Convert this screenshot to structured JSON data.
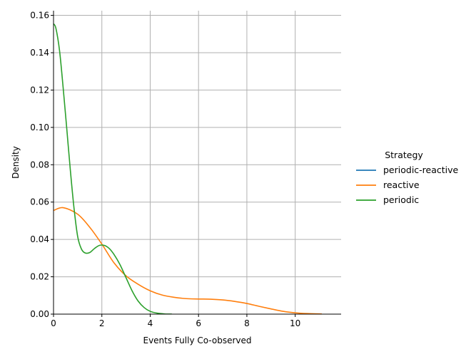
{
  "chart_data": {
    "type": "line",
    "title": "",
    "xlabel": "Events Fully Co-observed",
    "ylabel": "Density",
    "xlim": [
      0,
      11.9
    ],
    "ylim": [
      0,
      0.1625
    ],
    "xticks": [
      0,
      2,
      4,
      6,
      8,
      10
    ],
    "yticks": [
      0.0,
      0.02,
      0.04,
      0.06,
      0.08,
      0.1,
      0.12,
      0.14,
      0.16
    ],
    "grid": true,
    "legend": {
      "title": "Strategy",
      "placement": "right",
      "entries": [
        "periodic-reactive",
        "reactive",
        "periodic"
      ]
    },
    "colors": {
      "periodic-reactive": "#1f77b4",
      "reactive": "#ff7f0e",
      "periodic": "#2ca02c",
      "grid": "#b0b0b0",
      "axis": "#000000"
    },
    "series": [
      {
        "name": "periodic-reactive",
        "x": [],
        "y": []
      },
      {
        "name": "reactive",
        "x": [
          0,
          0.4,
          1.0,
          1.5,
          2.0,
          2.5,
          3.0,
          3.5,
          4.0,
          4.5,
          5.0,
          5.5,
          6.0,
          6.5,
          7.0,
          7.5,
          8.0,
          8.5,
          9.0,
          9.5,
          10.0,
          10.5,
          11.1
        ],
        "y": [
          0.0555,
          0.057,
          0.0535,
          0.0465,
          0.0375,
          0.0275,
          0.0205,
          0.016,
          0.0125,
          0.0102,
          0.009,
          0.0083,
          0.0081,
          0.008,
          0.0076,
          0.0068,
          0.0057,
          0.0042,
          0.0028,
          0.0015,
          0.0007,
          0.0003,
          0.0001
        ]
      },
      {
        "name": "periodic",
        "x": [
          0,
          0.1,
          0.25,
          0.4,
          0.55,
          0.7,
          0.85,
          1.0,
          1.15,
          1.3,
          1.5,
          1.7,
          1.9,
          2.1,
          2.3,
          2.5,
          2.75,
          3.0,
          3.25,
          3.5,
          3.75,
          4.0,
          4.3,
          4.6,
          4.9
        ],
        "y": [
          0.1555,
          0.153,
          0.141,
          0.121,
          0.099,
          0.0765,
          0.0565,
          0.0415,
          0.035,
          0.0328,
          0.033,
          0.0352,
          0.0368,
          0.0368,
          0.0352,
          0.032,
          0.0265,
          0.0195,
          0.0125,
          0.007,
          0.0035,
          0.0015,
          0.0005,
          0.0001,
          0
        ]
      }
    ]
  }
}
